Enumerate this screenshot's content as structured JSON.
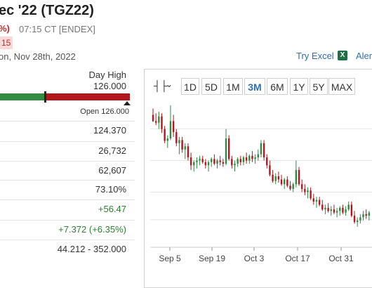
{
  "header": {
    "title": "ec '22 (TGZ22)",
    "change_pct": "%)",
    "timestamp": "07:15 CT [ENDEX]",
    "badge": "15",
    "date": "on, Nov 28th, 2022"
  },
  "day_range": {
    "label": "Day High",
    "high": "126.000",
    "open": "Open 126.000"
  },
  "stats": [
    "124.370",
    "26,732",
    "62,607",
    "73.10%",
    "+56.47",
    "+7.372 (+6.35%)",
    "44.212 - 352.000"
  ],
  "toolbar": {
    "try_excel": "Try Excel",
    "alerts": "Aler",
    "timeframes": [
      "1D",
      "5D",
      "1M",
      "3M",
      "6M",
      "1Y",
      "5Y",
      "MAX"
    ],
    "active_timeframe": "3M"
  },
  "colors": {
    "up": "#2e8b41",
    "down": "#b3171e",
    "link": "#2f6fb0"
  },
  "icons": [
    "candlestick-icon",
    "chevron-down-icon",
    "excel-icon"
  ],
  "chart_data": {
    "type": "candlestick",
    "x_tick_labels": [
      "Sep 5",
      "Sep 19",
      "Oct 3",
      "Oct 17",
      "Oct 31"
    ],
    "candles": [
      [
        168,
        176,
        159,
        160
      ],
      [
        160,
        170,
        155,
        158
      ],
      [
        158,
        172,
        150,
        166
      ],
      [
        166,
        170,
        145,
        150
      ],
      [
        150,
        154,
        132,
        135
      ],
      [
        135,
        142,
        126,
        138
      ],
      [
        138,
        180,
        136,
        160
      ],
      [
        160,
        168,
        140,
        146
      ],
      [
        146,
        150,
        128,
        132
      ],
      [
        132,
        140,
        118,
        136
      ],
      [
        136,
        140,
        120,
        124
      ],
      [
        124,
        132,
        112,
        128
      ],
      [
        128,
        132,
        110,
        114
      ],
      [
        114,
        120,
        98,
        104
      ],
      [
        104,
        110,
        96,
        108
      ],
      [
        108,
        114,
        100,
        110
      ],
      [
        110,
        116,
        104,
        112
      ],
      [
        112,
        116,
        106,
        108
      ],
      [
        108,
        112,
        100,
        104
      ],
      [
        104,
        110,
        96,
        108
      ],
      [
        108,
        114,
        102,
        112
      ],
      [
        112,
        118,
        104,
        106
      ],
      [
        106,
        112,
        100,
        110
      ],
      [
        110,
        116,
        104,
        108
      ],
      [
        108,
        112,
        102,
        106
      ],
      [
        106,
        150,
        104,
        138
      ],
      [
        138,
        142,
        110,
        112
      ],
      [
        112,
        116,
        100,
        104
      ],
      [
        104,
        110,
        96,
        106
      ],
      [
        106,
        114,
        102,
        112
      ],
      [
        112,
        116,
        104,
        108
      ],
      [
        108,
        116,
        104,
        114
      ],
      [
        114,
        120,
        106,
        110
      ],
      [
        110,
        118,
        106,
        116
      ],
      [
        116,
        122,
        108,
        112
      ],
      [
        112,
        118,
        106,
        114
      ],
      [
        114,
        124,
        110,
        118
      ],
      [
        118,
        136,
        114,
        132
      ],
      [
        132,
        136,
        110,
        114
      ],
      [
        114,
        118,
        100,
        104
      ],
      [
        104,
        110,
        90,
        92
      ],
      [
        92,
        98,
        82,
        84
      ],
      [
        84,
        94,
        80,
        90
      ],
      [
        90,
        96,
        82,
        86
      ],
      [
        86,
        92,
        78,
        80
      ],
      [
        80,
        88,
        74,
        86
      ],
      [
        86,
        90,
        76,
        78
      ],
      [
        78,
        84,
        72,
        74
      ],
      [
        74,
        82,
        70,
        80
      ],
      [
        80,
        110,
        76,
        98
      ],
      [
        98,
        102,
        78,
        80
      ],
      [
        80,
        86,
        70,
        74
      ],
      [
        74,
        80,
        66,
        70
      ],
      [
        70,
        76,
        62,
        72
      ],
      [
        72,
        76,
        60,
        62
      ],
      [
        62,
        68,
        54,
        58
      ],
      [
        58,
        64,
        50,
        60
      ],
      [
        60,
        64,
        52,
        54
      ],
      [
        54,
        60,
        46,
        48
      ],
      [
        48,
        54,
        42,
        50
      ],
      [
        50,
        56,
        44,
        46
      ],
      [
        46,
        52,
        40,
        48
      ],
      [
        48,
        54,
        42,
        44
      ],
      [
        44,
        50,
        38,
        46
      ],
      [
        46,
        52,
        40,
        50
      ],
      [
        50,
        54,
        42,
        44
      ],
      [
        44,
        52,
        40,
        48
      ],
      [
        48,
        58,
        46,
        54
      ],
      [
        54,
        58,
        38,
        40
      ],
      [
        40,
        46,
        30,
        32
      ],
      [
        32,
        38,
        26,
        34
      ],
      [
        34,
        42,
        30,
        38
      ],
      [
        38,
        46,
        34,
        42
      ],
      [
        42,
        48,
        36,
        40
      ],
      [
        40,
        46,
        34,
        44
      ]
    ]
  }
}
